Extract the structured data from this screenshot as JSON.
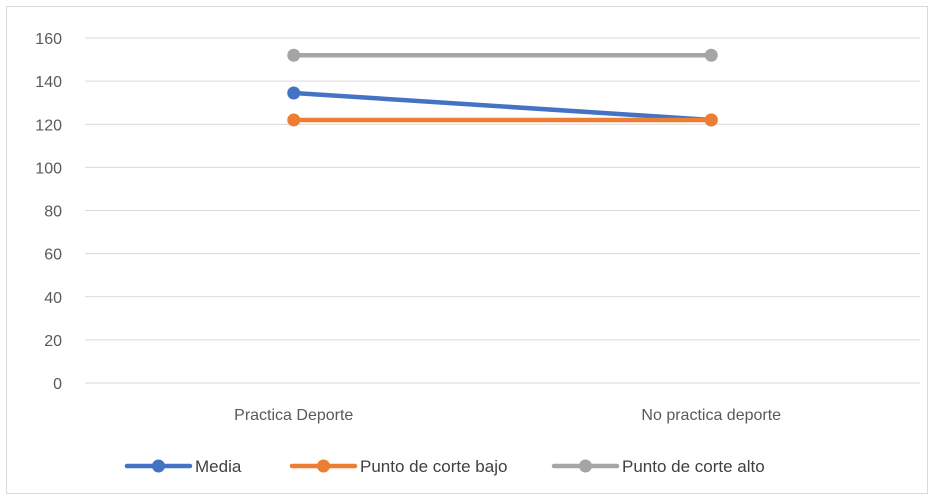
{
  "chart_data": {
    "type": "line",
    "title": "",
    "xlabel": "",
    "ylabel": "",
    "categories": [
      "Practica Deporte",
      "No practica deporte"
    ],
    "ylim": [
      0,
      160
    ],
    "yticks": [
      0,
      20,
      40,
      60,
      80,
      100,
      120,
      140,
      160
    ],
    "ytick_labels": [
      "0",
      "20",
      "40",
      "60",
      "80",
      "100",
      "120",
      "140",
      "160"
    ],
    "grid": true,
    "legend_position": "bottom",
    "series": [
      {
        "name": "Media",
        "values": [
          134.5,
          122
        ],
        "color": "#4472c4"
      },
      {
        "name": "Punto de corte bajo",
        "values": [
          122,
          122
        ],
        "color": "#ed7d31"
      },
      {
        "name": "Punto de corte alto",
        "values": [
          152,
          152
        ],
        "color": "#a5a5a5"
      }
    ]
  }
}
